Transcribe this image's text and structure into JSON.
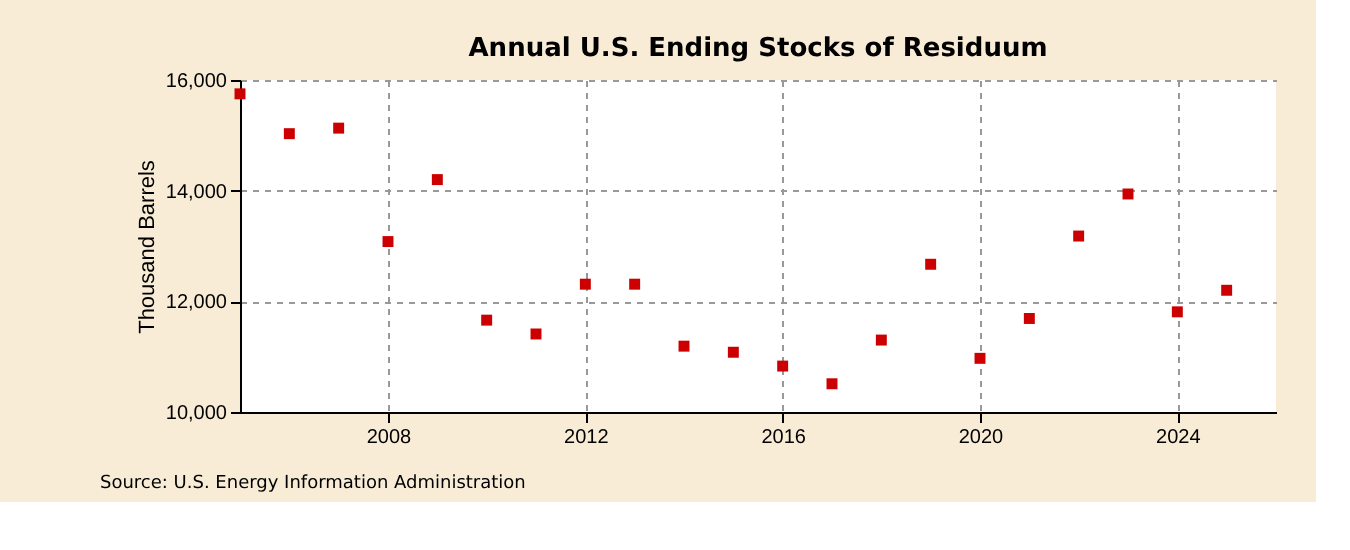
{
  "chart_data": {
    "type": "scatter",
    "title": "Annual U.S. Ending Stocks of Residuum",
    "ylabel": "Thousand Barrels",
    "x": [
      2005,
      2006,
      2007,
      2008,
      2009,
      2010,
      2011,
      2012,
      2013,
      2014,
      2015,
      2016,
      2017,
      2018,
      2019,
      2020,
      2021,
      2022,
      2023,
      2024,
      2025
    ],
    "series": [
      {
        "color": "#cc0000",
        "values": [
          15750,
          15030,
          15130,
          13080,
          14200,
          11660,
          11410,
          12310,
          12310,
          11190,
          11080,
          10830,
          10510,
          11300,
          12670,
          10970,
          11690,
          13180,
          13940,
          11810,
          12200
        ]
      }
    ],
    "xlim": [
      2005,
      2026
    ],
    "xticks": [
      2008,
      2012,
      2016,
      2020,
      2024
    ],
    "ylim": [
      10000,
      16000
    ],
    "yticks": [
      {
        "value": 10000,
        "label": "10,000"
      },
      {
        "value": 12000,
        "label": "12,000"
      },
      {
        "value": 14000,
        "label": "14,000"
      },
      {
        "value": 16000,
        "label": "16,000"
      }
    ],
    "grid": true,
    "marker": "square",
    "annotations": [
      "Source: U.S. Energy Information Administration"
    ]
  }
}
